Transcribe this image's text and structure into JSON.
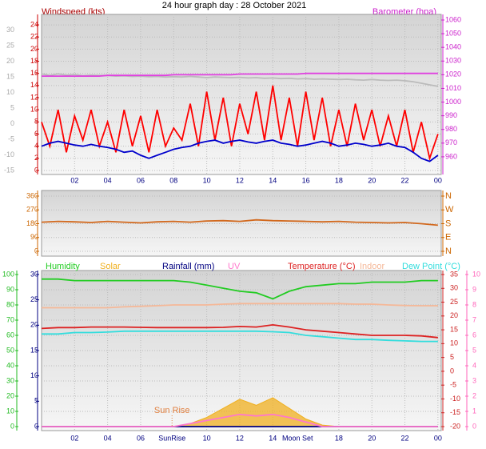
{
  "chart_data": [
    {
      "type": "line",
      "title": "24 hour graph day : 28 October 2021",
      "ylabel": "Windspeed (kts)",
      "y2label": "Barometer (hpa)",
      "x": [
        0,
        0.5,
        1,
        1.5,
        2,
        2.5,
        3,
        3.5,
        4,
        4.5,
        5,
        5.5,
        6,
        6.5,
        7,
        7.5,
        8,
        8.5,
        9,
        9.5,
        10,
        10.5,
        11,
        11.5,
        12,
        12.5,
        13,
        13.5,
        14,
        14.5,
        15,
        15.5,
        16,
        16.5,
        17,
        17.5,
        18,
        18.5,
        19,
        19.5,
        20,
        20.5,
        21,
        21.5,
        22,
        22.5,
        23,
        23.5,
        24
      ],
      "xlim": [
        0,
        24.2
      ],
      "xticks": [
        {
          "value": 2,
          "label": "02"
        },
        {
          "value": 4,
          "label": "04"
        },
        {
          "value": 6,
          "label": "06"
        },
        {
          "value": 8,
          "label": "08"
        },
        10,
        12,
        14,
        16,
        18,
        20,
        22,
        {
          "value": 24,
          "label": "00"
        }
      ],
      "ylim": [
        0,
        24.8
      ],
      "yticks": [
        0,
        2,
        4,
        6,
        8,
        10,
        12,
        14,
        16,
        18,
        20,
        22,
        24
      ],
      "y2lim": [
        950,
        1060
      ],
      "y2ticks": [
        960,
        970,
        980,
        990,
        1000,
        1010,
        1020,
        1030,
        1040,
        1050,
        1060
      ],
      "y3lim": [
        -15,
        33.3
      ],
      "y3ticks": [
        -15,
        -10,
        -5,
        0,
        5,
        10,
        15,
        20,
        25,
        30
      ],
      "grid": true,
      "series": [
        {
          "color": "#bbbbbb",
          "axis": "y3",
          "values": [
            16,
            15.5,
            16,
            15.6,
            15.8,
            15.4,
            15.6,
            15.5,
            15.5,
            15.3,
            15.4,
            15.2,
            15.3,
            15.1,
            15.2,
            15.0,
            15.1,
            15.0,
            15.2,
            15.0,
            14.8,
            15.0,
            14.9,
            14.8,
            14.9,
            14.7,
            14.8,
            14.6,
            14.7,
            14.5,
            14.6,
            14.4,
            14.5,
            14.3,
            14.4,
            14.3,
            14.2,
            14.3,
            14.1,
            14.0,
            14.2,
            14.0,
            13.9,
            14.0,
            13.8,
            13.5,
            13.0,
            12.5,
            12.0
          ]
        },
        {
          "color": "#ff0000",
          "values": [
            8,
            4,
            10,
            3,
            9,
            5,
            10,
            4,
            8,
            3,
            10,
            4,
            9,
            3,
            10,
            4,
            7,
            5,
            11,
            4,
            13,
            5,
            12,
            4,
            11,
            6,
            13,
            5,
            14,
            5,
            12,
            4,
            13,
            5,
            12,
            4,
            10,
            4,
            11,
            5,
            10,
            4,
            9,
            4,
            10,
            3,
            8,
            2,
            6
          ]
        },
        {
          "color": "#0000cc",
          "values": [
            4,
            4.5,
            4.8,
            4.5,
            4.2,
            4,
            4.3,
            4,
            3.8,
            3.5,
            3,
            3.2,
            2.5,
            2,
            2.5,
            3,
            3.5,
            3.8,
            4,
            4.5,
            4.8,
            5,
            4.5,
            4.8,
            5,
            4.7,
            4.5,
            4.8,
            5,
            4.5,
            4.3,
            4,
            4.2,
            4.5,
            4.8,
            4.5,
            4,
            4.2,
            4.5,
            4.3,
            4,
            4.2,
            4.5,
            4,
            3.8,
            3,
            2,
            1.5,
            2.5
          ]
        },
        {
          "color": "#e040e0",
          "axis": "y2",
          "values": [
            1019,
            1019,
            1019,
            1019,
            1019,
            1019,
            1019,
            1019,
            1019.5,
            1019.5,
            1019.5,
            1019.5,
            1019.5,
            1019.5,
            1019.5,
            1019.5,
            1020,
            1020,
            1020,
            1020,
            1020,
            1020,
            1020,
            1020,
            1020.5,
            1020.5,
            1020.5,
            1020.5,
            1020.5,
            1020.5,
            1020.5,
            1020.5,
            1021,
            1021,
            1021,
            1021,
            1021,
            1021,
            1021,
            1021,
            1021,
            1021,
            1021,
            1021,
            1021,
            1021,
            1021,
            1021,
            1021
          ]
        }
      ]
    },
    {
      "type": "line",
      "x": [
        0,
        1,
        2,
        3,
        4,
        5,
        6,
        7,
        8,
        9,
        10,
        11,
        12,
        13,
        14,
        15,
        16,
        17,
        18,
        19,
        20,
        21,
        22,
        23,
        24
      ],
      "xlim": [
        0,
        24.2
      ],
      "ylim": [
        0,
        360
      ],
      "yticks": [
        0,
        90,
        180,
        270,
        360
      ],
      "y2ticks": [
        {
          "value": 0,
          "label": "N"
        },
        {
          "value": 90,
          "label": "E"
        },
        {
          "value": 180,
          "label": "S"
        },
        {
          "value": 270,
          "label": "W"
        },
        {
          "value": 360,
          "label": "N"
        }
      ],
      "grid": true,
      "series": [
        {
          "color": "#d2691e",
          "values": [
            190,
            195,
            192,
            188,
            195,
            190,
            185,
            192,
            195,
            190,
            198,
            200,
            195,
            205,
            200,
            198,
            195,
            192,
            195,
            190,
            188,
            185,
            188,
            180,
            170
          ]
        }
      ]
    },
    {
      "type": "line",
      "x": [
        0,
        1,
        2,
        3,
        4,
        5,
        6,
        7,
        8,
        9,
        10,
        11,
        12,
        13,
        14,
        15,
        16,
        17,
        18,
        19,
        20,
        21,
        22,
        23,
        24
      ],
      "xlim": [
        0,
        24.2
      ],
      "xticks": [
        {
          "value": 2,
          "label": "02"
        },
        {
          "value": 4,
          "label": "04"
        },
        {
          "value": 6,
          "label": "06"
        },
        10,
        12,
        14,
        18,
        20,
        22,
        {
          "value": 24,
          "label": "00"
        }
      ],
      "x_markers": [
        {
          "x": 7.9,
          "label": "SunRise"
        },
        {
          "x": 15.5,
          "label": "Moon Set"
        }
      ],
      "annotations": [
        {
          "x": 7.9,
          "label": "Sun Rise"
        }
      ],
      "ylim": [
        0,
        100
      ],
      "yticks": [
        0,
        10,
        20,
        30,
        40,
        50,
        60,
        70,
        80,
        90,
        100
      ],
      "y2lim": [
        -20,
        35
      ],
      "y2ticks": [
        -20,
        -15,
        -10,
        -5,
        0,
        5,
        10,
        15,
        20,
        25,
        30,
        35
      ],
      "y3lim": [
        0,
        30
      ],
      "y3ticks": [
        0,
        5,
        10,
        15,
        20,
        25,
        30
      ],
      "y4lim": [
        0,
        10
      ],
      "y4ticks": [
        0,
        1,
        2,
        3,
        4,
        5,
        6,
        7,
        8,
        9,
        10
      ],
      "grid": true,
      "series": [
        {
          "name": "Humidity",
          "color": "#22cc22",
          "values": [
            97,
            97,
            96,
            96,
            96,
            96,
            96,
            96,
            96,
            95,
            93,
            91,
            89,
            88,
            84,
            89,
            92,
            93,
            94,
            94,
            95,
            95,
            95,
            96,
            96
          ]
        },
        {
          "name": "Solar",
          "color": "#f0b020",
          "area": true,
          "values": [
            0,
            0,
            0,
            0,
            0,
            0,
            0,
            0,
            0,
            2,
            6,
            12,
            18,
            14,
            19,
            12,
            5,
            1,
            0,
            0,
            0,
            0,
            0,
            0,
            0
          ]
        },
        {
          "name": "Rainfall (mm)",
          "color": "#000080",
          "axis": "y3",
          "values": [
            0,
            0,
            0,
            0,
            0,
            0,
            0,
            0,
            0,
            0,
            0,
            0,
            0,
            0,
            0,
            0,
            0,
            0,
            0,
            0,
            0,
            0,
            0,
            0,
            0
          ]
        },
        {
          "name": "UV",
          "color": "#ff77cc",
          "axis": "y4",
          "values": [
            0,
            0,
            0,
            0,
            0,
            0,
            0,
            0,
            0,
            0.2,
            0.4,
            0.6,
            0.8,
            0.7,
            0.8,
            0.6,
            0.3,
            0,
            0,
            0,
            0,
            0,
            0,
            0,
            0
          ]
        },
        {
          "name": "Temperature (°C)",
          "color": "#dd2222",
          "axis": "y2",
          "values": [
            15.5,
            15.8,
            15.8,
            16,
            16,
            16,
            15.9,
            15.8,
            15.8,
            15.8,
            15.8,
            15.9,
            16.2,
            16,
            16.8,
            16,
            15,
            14.5,
            14,
            13.5,
            13,
            13,
            13,
            12.8,
            12.2
          ]
        },
        {
          "name": "Indoor",
          "color": "#f5b898",
          "axis": "y2",
          "values": [
            23,
            23,
            23,
            23,
            23,
            23.3,
            23.5,
            23.7,
            24,
            24,
            24,
            24.3,
            24.5,
            24.5,
            24.5,
            24.5,
            24.5,
            24.5,
            24.5,
            24.3,
            24.3,
            24,
            23.8,
            23.7,
            23.7
          ]
        },
        {
          "name": "Dew Point (°C)",
          "color": "#33dddd",
          "axis": "y2",
          "values": [
            13.5,
            13.5,
            14,
            14,
            14.2,
            14.5,
            14.5,
            14.5,
            14.5,
            14.5,
            14.5,
            14.5,
            14.5,
            14.5,
            14.3,
            14,
            13,
            12.5,
            12,
            11.5,
            11.5,
            11.2,
            11,
            10.8,
            10.8
          ]
        }
      ]
    }
  ]
}
